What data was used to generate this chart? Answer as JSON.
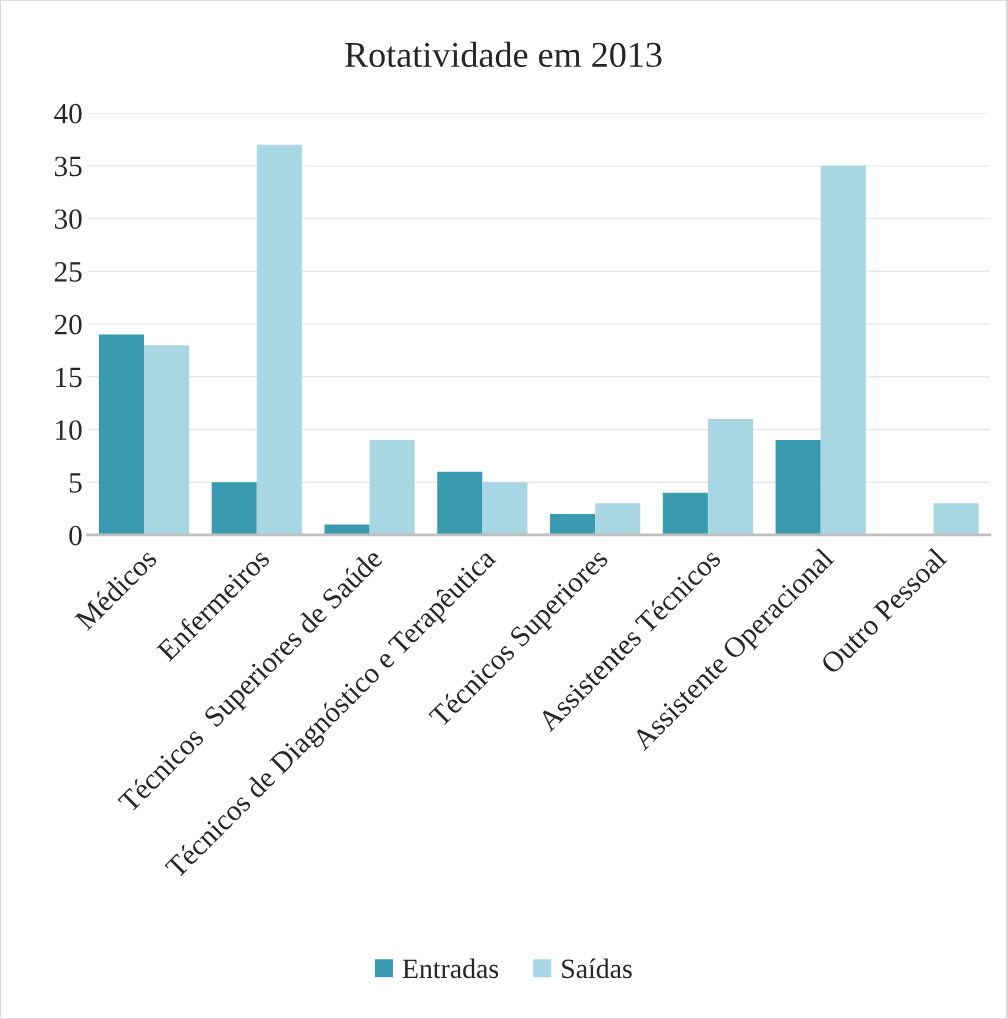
{
  "chart_data": {
    "type": "bar",
    "title": "Rotatividade em 2013",
    "categories": [
      "Médicos",
      "Enfermeiros",
      "Técnicos  Superiores de Saúde",
      "Técnicos de Diagnóstico e Terapêutica",
      "Técnicos Superiores",
      "Assistentes Técnicos",
      "Assistente Operacional",
      "Outro Pessoal"
    ],
    "series": [
      {
        "name": "Entradas",
        "color": "#3a9bb0",
        "values": [
          19,
          5,
          1,
          6,
          2,
          4,
          9,
          0
        ]
      },
      {
        "name": "Saídas",
        "color": "#a9d6e3",
        "values": [
          18,
          37,
          9,
          5,
          3,
          11,
          35,
          3
        ]
      }
    ],
    "ylim": [
      0,
      40
    ],
    "yticks": [
      0,
      5,
      10,
      15,
      20,
      25,
      30,
      35,
      40
    ],
    "grid": "y",
    "legend": "bottom"
  }
}
